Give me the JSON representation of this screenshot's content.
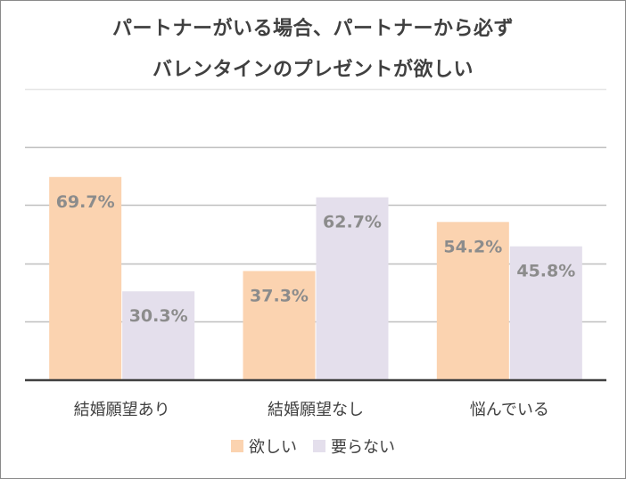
{
  "chart_data": {
    "type": "bar",
    "title_lines": [
      "パートナーがいる場合、パートナーから必ず",
      "バレンタインのプレゼントが欲しい"
    ],
    "categories": [
      "結婚願望あり",
      "結婚願望なし",
      "悩んでいる"
    ],
    "series": [
      {
        "name": "欲しい",
        "values": [
          69.7,
          37.3,
          54.2
        ],
        "labels": [
          "69.7%",
          "37.3%",
          "54.2%"
        ],
        "color": "#fbd3b0"
      },
      {
        "name": "要らない",
        "values": [
          30.3,
          62.7,
          45.8
        ],
        "labels": [
          "30.3%",
          "62.7%",
          "45.8%"
        ],
        "color": "#e4dfec"
      }
    ],
    "ylim": [
      0,
      100
    ],
    "grid": true,
    "legend_position": "bottom",
    "colors": {
      "label": "#8c8c8c",
      "gridline": "#bfbfbf",
      "axis": "#404040"
    }
  }
}
